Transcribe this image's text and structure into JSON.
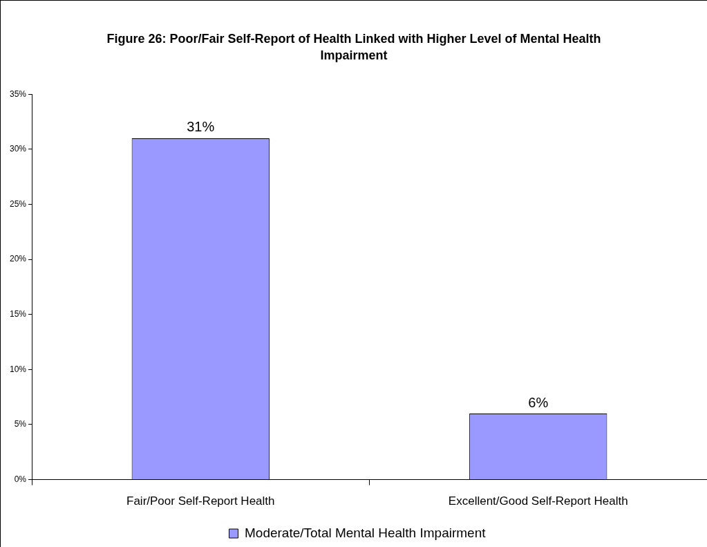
{
  "chart_data": {
    "type": "bar",
    "title": "Figure 26:  Poor/Fair Self-Report of Health Linked with Higher Level of Mental Health Impairment",
    "categories": [
      "Fair/Poor Self-Report Health",
      "Excellent/Good Self-Report Health"
    ],
    "series": [
      {
        "name": "Moderate/Total Mental Health Impairment",
        "color": "#9999ff",
        "values": [
          31,
          6
        ],
        "value_labels": [
          "31%",
          "6%"
        ]
      }
    ],
    "ylim": [
      0,
      35
    ],
    "yticks": [
      {
        "value": 0,
        "label": "0%"
      },
      {
        "value": 5,
        "label": "5%"
      },
      {
        "value": 10,
        "label": "10%"
      },
      {
        "value": 15,
        "label": "15%"
      },
      {
        "value": 20,
        "label": "20%"
      },
      {
        "value": 25,
        "label": "25%"
      },
      {
        "value": 30,
        "label": "30%"
      },
      {
        "value": 35,
        "label": "35%"
      }
    ],
    "legend": "bottom"
  }
}
